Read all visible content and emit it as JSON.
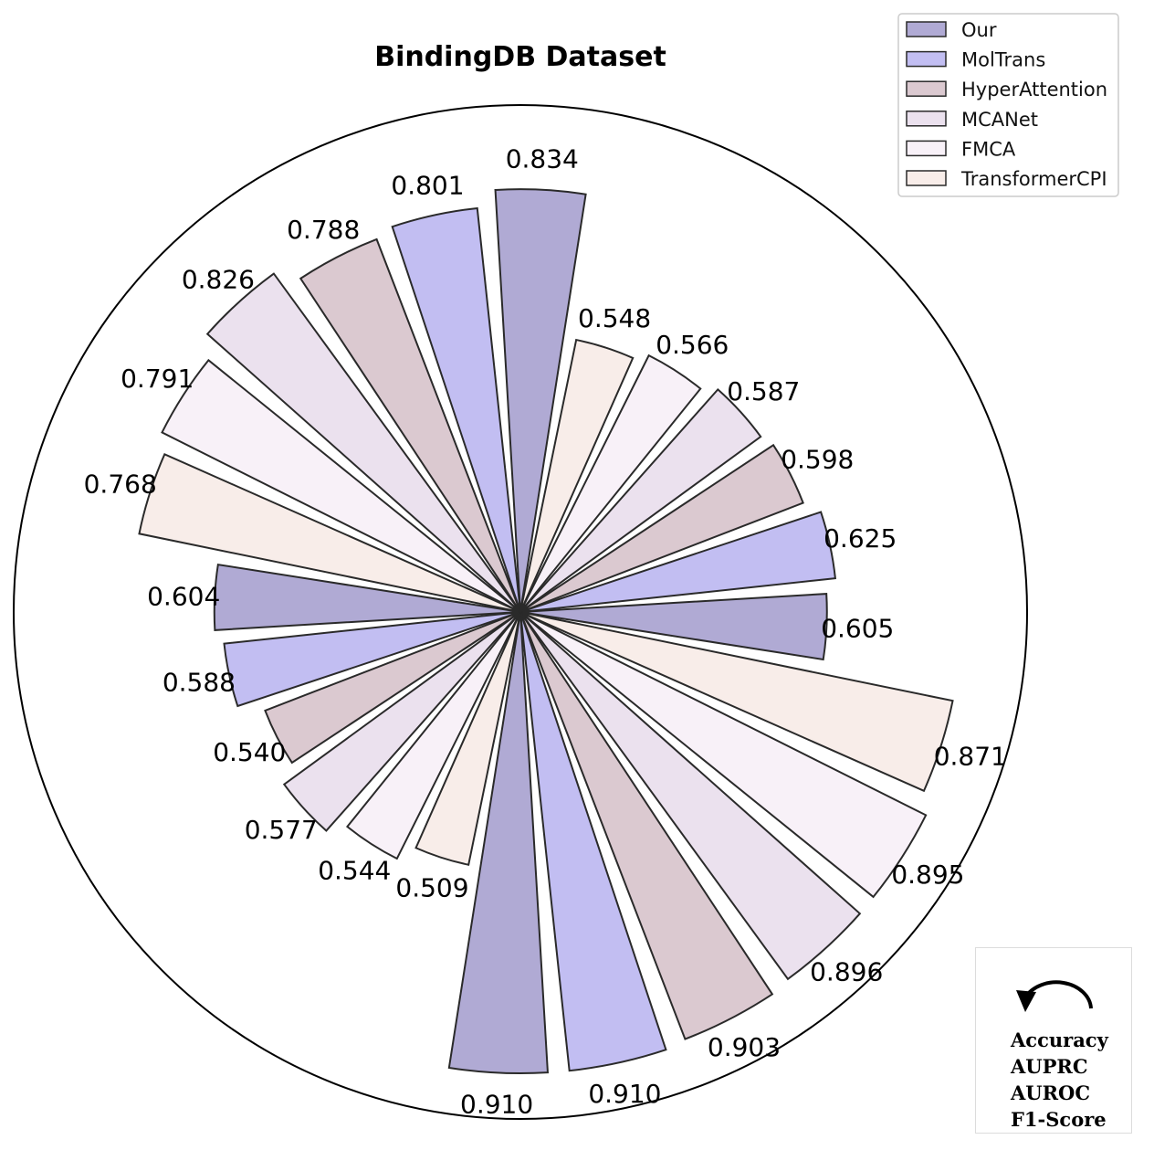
{
  "chart_data": {
    "type": "polar-bar",
    "title": "BindingDB Dataset",
    "metrics": [
      "Accuracy",
      "AUPRC",
      "AUROC",
      "F1-Score"
    ],
    "series": [
      {
        "name": "Our",
        "color": "#b0aad4",
        "values": [
          0.834,
          0.604,
          0.91,
          0.605
        ]
      },
      {
        "name": "MolTrans",
        "color": "#c2bef2",
        "values": [
          0.801,
          0.588,
          0.91,
          0.625
        ]
      },
      {
        "name": "HyperAttention",
        "color": "#dbc9d0",
        "values": [
          0.788,
          0.54,
          0.903,
          0.598
        ]
      },
      {
        "name": "MCANet",
        "color": "#ebe1ee",
        "values": [
          0.826,
          0.577,
          0.896,
          0.587
        ]
      },
      {
        "name": "FMCA",
        "color": "#f8f1f8",
        "values": [
          0.791,
          0.544,
          0.895,
          0.566
        ]
      },
      {
        "name": "TransformerCPI",
        "color": "#f8ede9",
        "values": [
          0.768,
          0.509,
          0.871,
          0.548
        ]
      }
    ],
    "value_labels": [
      "0.834",
      "0.801",
      "0.788",
      "0.826",
      "0.791",
      "0.768",
      "0.604",
      "0.588",
      "0.540",
      "0.577",
      "0.544",
      "0.509",
      "0.910",
      "0.910",
      "0.903",
      "0.896",
      "0.895",
      "0.871",
      "0.605",
      "0.625",
      "0.598",
      "0.587",
      "0.566",
      "0.548"
    ],
    "rlim": [
      0,
      1.0
    ],
    "grid": false,
    "legend": "top-right",
    "direction_note": "counterclockwise"
  }
}
